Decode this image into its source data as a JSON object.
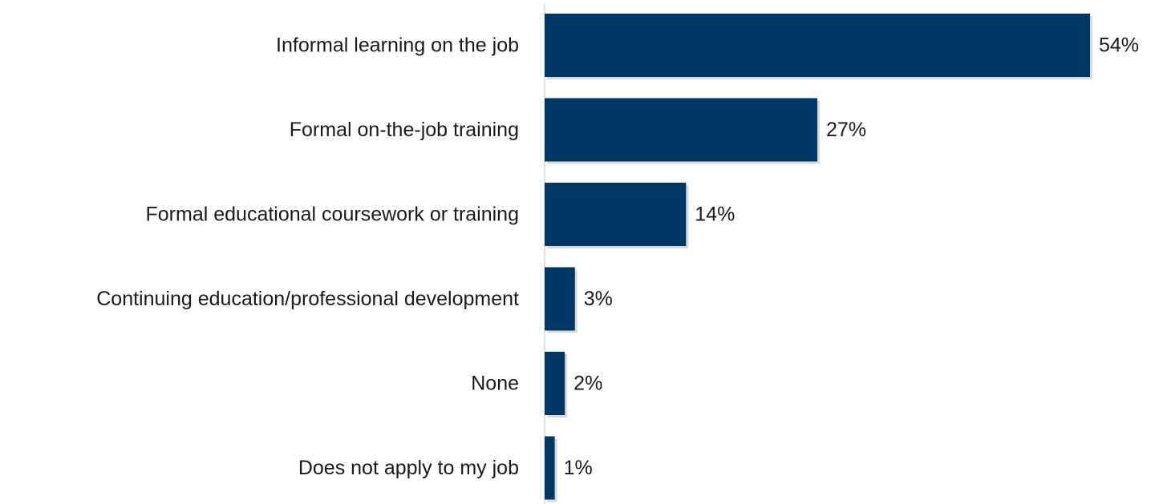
{
  "chart_data": {
    "type": "bar",
    "orientation": "horizontal",
    "categories": [
      "Informal learning on the job",
      "Formal on-the-job training",
      "Formal educational coursework or training",
      "Continuing education/professional development",
      "None",
      "Does not apply to my job"
    ],
    "values": [
      54,
      27,
      14,
      3,
      2,
      1
    ],
    "value_labels": [
      "54%",
      "27%",
      "14%",
      "3%",
      "2%",
      "1%"
    ],
    "unit": "%",
    "xlim": [
      0,
      54
    ],
    "title": "",
    "xlabel": "",
    "ylabel": "",
    "grid": false,
    "legend": "none",
    "bar_color": "#003865",
    "axis_color": "#d9d9d9"
  }
}
